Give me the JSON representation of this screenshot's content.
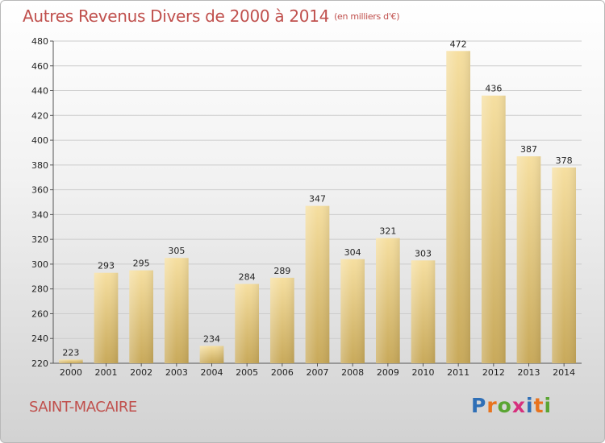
{
  "title": "Autres Revenus Divers de 2000 à 2014",
  "subtitle": "(en milliers d'€)",
  "town": "SAINT-MACAIRE",
  "logo": {
    "letters": [
      "P",
      "r",
      "o",
      "x",
      "i",
      "t",
      "i"
    ],
    "colors": [
      "#2f6fb6",
      "#e8731e",
      "#5aa532",
      "#d6307d",
      "#2f6fb6",
      "#e8731e",
      "#5aa532"
    ]
  },
  "colors": {
    "title": "#c0504d",
    "bar_top": "#f6dfa0",
    "bar_bottom": "#c8a95a",
    "grid": "#cccccc"
  },
  "chart_data": {
    "type": "bar",
    "title": "Autres Revenus Divers de 2000 à 2014",
    "subtitle": "(en milliers d'€)",
    "xlabel": "",
    "ylabel": "",
    "ylim": [
      220,
      480
    ],
    "yticks": [
      220,
      240,
      260,
      280,
      300,
      320,
      340,
      360,
      380,
      400,
      420,
      440,
      460,
      480
    ],
    "grid": true,
    "categories": [
      "2000",
      "2001",
      "2002",
      "2003",
      "2004",
      "2005",
      "2006",
      "2007",
      "2008",
      "2009",
      "2010",
      "2011",
      "2012",
      "2013",
      "2014"
    ],
    "values": [
      223,
      293,
      295,
      305,
      234,
      284,
      289,
      347,
      304,
      321,
      303,
      472,
      436,
      387,
      378
    ],
    "labels": [
      "223",
      "293",
      "295",
      "305",
      "234",
      "284",
      "289",
      "347",
      "304",
      "321",
      "303",
      "472",
      "436",
      "387",
      "378"
    ]
  }
}
